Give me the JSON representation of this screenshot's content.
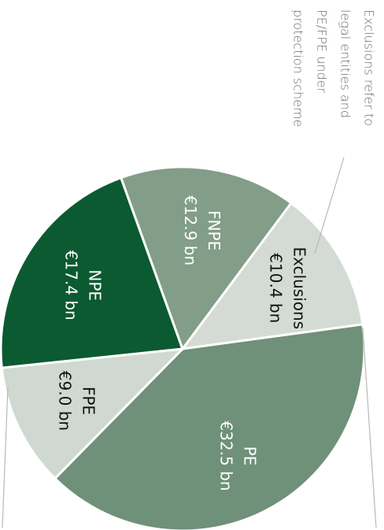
{
  "chart_data": {
    "type": "pie",
    "categories": [
      "Exclusions",
      "PE",
      "FPE",
      "NPE",
      "FNPE"
    ],
    "values": [
      10.4,
      32.5,
      9.0,
      17.4,
      12.9
    ],
    "value_labels": [
      "€10.4 bn",
      "€32.5 bn",
      "€9.0 bn",
      "€17.4 bn",
      "€12.9 bn"
    ],
    "colors": [
      "#d3dbd4",
      "#6f9079",
      "#d0d9d1",
      "#0c5a31",
      "#829d88"
    ],
    "label_colors": [
      "#111111",
      "#ffffff",
      "#111111",
      "#ffffff",
      "#ffffff"
    ],
    "annotation": [
      "Exclusions refer to",
      "legal entities and",
      "PE/FPE under",
      "protection scheme"
    ]
  }
}
